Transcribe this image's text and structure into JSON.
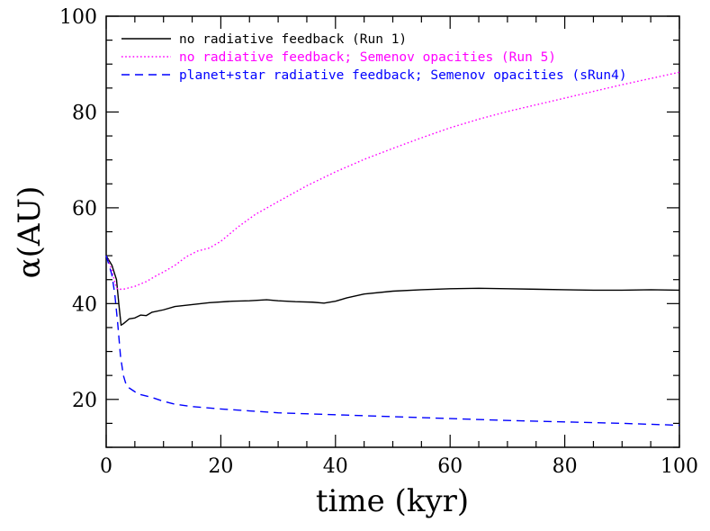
{
  "chart_data": {
    "type": "line",
    "title": "",
    "xlabel": "time (kyr)",
    "ylabel": "α(AU)",
    "xlim": [
      0,
      100
    ],
    "ylim": [
      10,
      100
    ],
    "x_ticks": [
      0,
      20,
      40,
      60,
      80,
      100
    ],
    "y_ticks": [
      20,
      40,
      60,
      80,
      100
    ],
    "legend_position": "top-left",
    "series": [
      {
        "name": "no radiative feedback (Run 1)",
        "color": "#000000",
        "style": "solid",
        "points": [
          [
            0,
            50
          ],
          [
            1,
            48
          ],
          [
            1.8,
            45
          ],
          [
            2.2,
            40
          ],
          [
            2.6,
            35.5
          ],
          [
            3,
            35.8
          ],
          [
            4,
            36.8
          ],
          [
            5,
            37
          ],
          [
            6,
            37.6
          ],
          [
            7,
            37.5
          ],
          [
            8,
            38.2
          ],
          [
            10,
            38.7
          ],
          [
            12,
            39.4
          ],
          [
            15,
            39.8
          ],
          [
            18,
            40.2
          ],
          [
            22,
            40.5
          ],
          [
            25,
            40.6
          ],
          [
            28,
            40.8
          ],
          [
            30,
            40.6
          ],
          [
            33,
            40.4
          ],
          [
            36,
            40.3
          ],
          [
            38,
            40.1
          ],
          [
            40,
            40.5
          ],
          [
            42,
            41.2
          ],
          [
            45,
            42
          ],
          [
            50,
            42.6
          ],
          [
            55,
            42.9
          ],
          [
            60,
            43.1
          ],
          [
            65,
            43.2
          ],
          [
            70,
            43.1
          ],
          [
            75,
            43
          ],
          [
            80,
            42.9
          ],
          [
            85,
            42.8
          ],
          [
            90,
            42.8
          ],
          [
            95,
            42.9
          ],
          [
            100,
            42.8
          ]
        ]
      },
      {
        "name": "no radiative feedback; Semenov opacities (Run 5)",
        "color": "#ff00ff",
        "style": "dotted",
        "points": [
          [
            0,
            50
          ],
          [
            1,
            47
          ],
          [
            1.6,
            44
          ],
          [
            2,
            43
          ],
          [
            3,
            43
          ],
          [
            5,
            43.6
          ],
          [
            7,
            44.6
          ],
          [
            9,
            46
          ],
          [
            10,
            46.6
          ],
          [
            12,
            48
          ],
          [
            14,
            49.8
          ],
          [
            16,
            51
          ],
          [
            18,
            51.6
          ],
          [
            20,
            53
          ],
          [
            23,
            56
          ],
          [
            26,
            58.6
          ],
          [
            30,
            61.3
          ],
          [
            35,
            64.6
          ],
          [
            40,
            67.5
          ],
          [
            45,
            70.1
          ],
          [
            50,
            72.4
          ],
          [
            55,
            74.6
          ],
          [
            60,
            76.7
          ],
          [
            65,
            78.5
          ],
          [
            70,
            80.1
          ],
          [
            75,
            81.5
          ],
          [
            80,
            82.9
          ],
          [
            85,
            84.3
          ],
          [
            90,
            85.7
          ],
          [
            95,
            87
          ],
          [
            100,
            88.3
          ]
        ]
      },
      {
        "name": "planet+star radiative feedback; Semenov opacities (sRun4)",
        "color": "#0000ff",
        "style": "dashed",
        "points": [
          [
            0,
            50
          ],
          [
            1,
            46
          ],
          [
            1.5,
            42
          ],
          [
            2,
            36
          ],
          [
            2.5,
            29
          ],
          [
            3,
            25
          ],
          [
            3.5,
            23
          ],
          [
            4,
            22.4
          ],
          [
            5,
            21.6
          ],
          [
            6,
            21
          ],
          [
            8,
            20.4
          ],
          [
            10,
            19.6
          ],
          [
            12,
            19
          ],
          [
            15,
            18.5
          ],
          [
            20,
            18
          ],
          [
            25,
            17.6
          ],
          [
            30,
            17.2
          ],
          [
            40,
            16.8
          ],
          [
            50,
            16.4
          ],
          [
            60,
            16
          ],
          [
            70,
            15.6
          ],
          [
            80,
            15.3
          ],
          [
            90,
            15
          ],
          [
            100,
            14.6
          ]
        ]
      }
    ]
  }
}
